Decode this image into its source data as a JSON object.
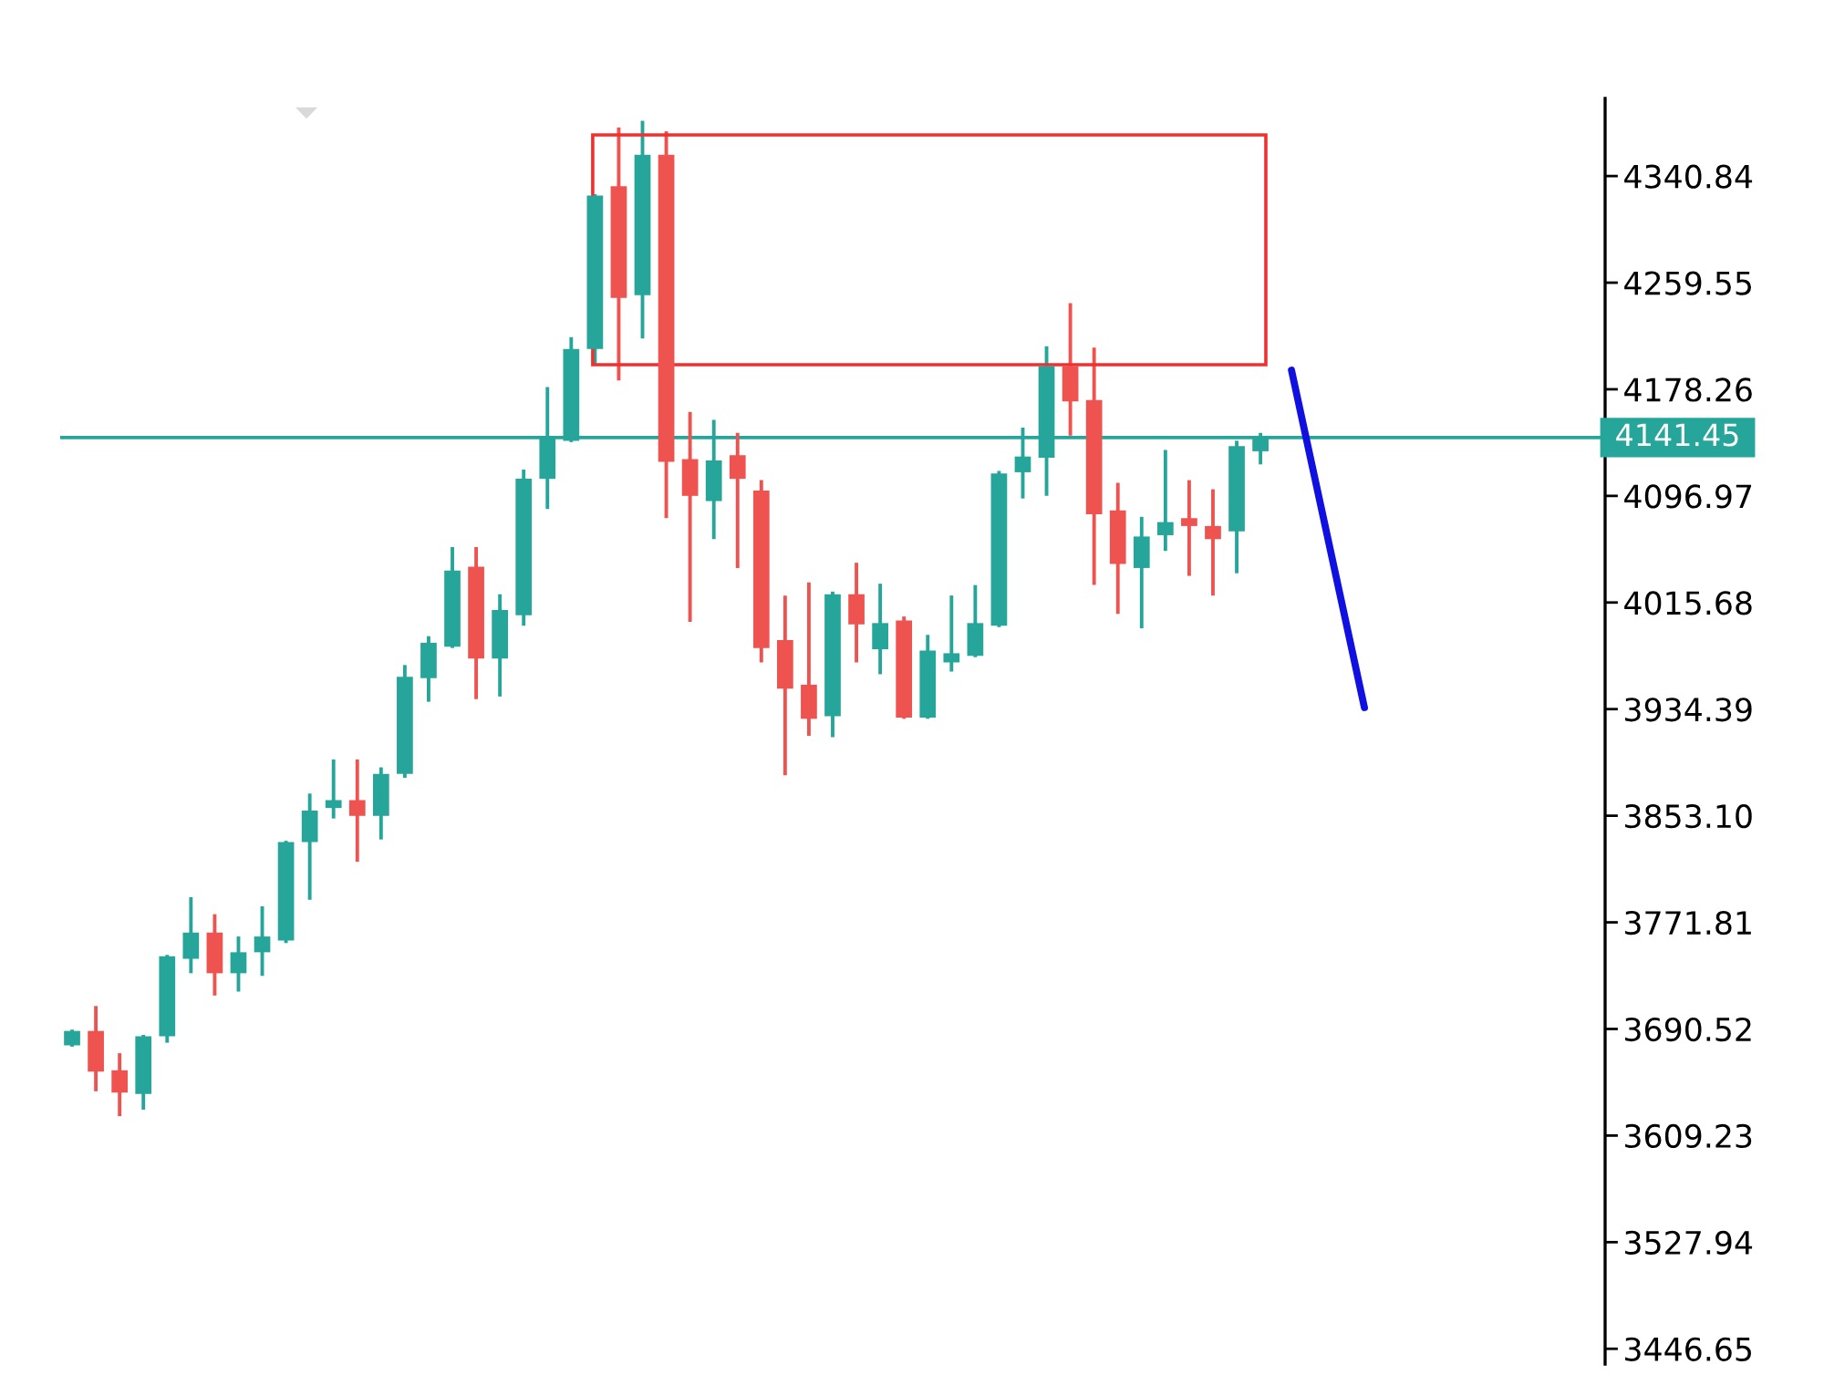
{
  "chart_data": {
    "type": "candlestick",
    "categories": [
      null,
      null,
      null,
      null,
      null,
      null,
      null,
      null,
      null,
      null,
      null,
      null,
      null,
      null,
      null,
      null,
      null,
      null,
      null,
      null,
      null,
      null,
      null,
      null,
      null,
      null,
      null,
      null,
      null,
      null,
      null,
      null,
      null,
      null,
      null,
      null,
      null,
      null,
      null,
      null,
      null,
      null,
      null,
      null,
      null,
      null,
      null,
      null,
      null,
      null,
      null,
      null,
      null,
      null,
      null,
      null,
      null,
      null,
      null,
      null,
      null,
      null,
      null,
      null,
      null
    ],
    "ohlc": [
      [
        3678,
        3690,
        3677,
        3689
      ],
      [
        3689,
        3708,
        3643,
        3658
      ],
      [
        3659,
        3672,
        3624,
        3642
      ],
      [
        3641,
        3686,
        3629,
        3685
      ],
      [
        3685,
        3747,
        3680,
        3746
      ],
      [
        3744,
        3791,
        3733,
        3764
      ],
      [
        3764,
        3778,
        3716,
        3733
      ],
      [
        3733,
        3761,
        3719,
        3749
      ],
      [
        3749,
        3784,
        3731,
        3761
      ],
      [
        3758,
        3834,
        3756,
        3833
      ],
      [
        3833,
        3870,
        3789,
        3857
      ],
      [
        3859,
        3896,
        3851,
        3865
      ],
      [
        3865,
        3896,
        3818,
        3853
      ],
      [
        3853,
        3890,
        3835,
        3885
      ],
      [
        3885,
        3968,
        3882,
        3959
      ],
      [
        3958,
        3990,
        3940,
        3985
      ],
      [
        3982,
        4058,
        3981,
        4040
      ],
      [
        4043,
        4058,
        3942,
        3973
      ],
      [
        3973,
        4022,
        3944,
        4010
      ],
      [
        4006,
        4117,
        3998,
        4110
      ],
      [
        4110,
        4180,
        4087,
        4141
      ],
      [
        4139,
        4218,
        4138,
        4209
      ],
      [
        4209,
        4327,
        4197,
        4326
      ],
      [
        4333,
        4378,
        4185,
        4248
      ],
      [
        4250,
        4383,
        4217,
        4357
      ],
      [
        4357,
        4375,
        4080,
        4123
      ],
      [
        4125,
        4161,
        4001,
        4097
      ],
      [
        4093,
        4155,
        4064,
        4124
      ],
      [
        4128,
        4145,
        4042,
        4110
      ],
      [
        4101,
        4109,
        3970,
        3981
      ],
      [
        3987,
        4021,
        3884,
        3950
      ],
      [
        3953,
        4031,
        3914,
        3927
      ],
      [
        3929,
        4024,
        3913,
        4022
      ],
      [
        4022,
        4046,
        3970,
        3999
      ],
      [
        3980,
        4030,
        3961,
        4000
      ],
      [
        4002,
        4005,
        3927,
        3928
      ],
      [
        3928,
        3991,
        3927,
        3979
      ],
      [
        3970,
        4021,
        3963,
        3977
      ],
      [
        3975,
        4029,
        3974,
        4000
      ],
      [
        3998,
        4116,
        3997,
        4114
      ],
      [
        4115,
        4149,
        4095,
        4127
      ],
      [
        4126,
        4211,
        4097,
        4196
      ],
      [
        4196,
        4244,
        4143,
        4169
      ],
      [
        4170,
        4210,
        4029,
        4083
      ],
      [
        4086,
        4107,
        4007,
        4045
      ],
      [
        4042,
        4081,
        3996,
        4066
      ],
      [
        4067,
        4132,
        4055,
        4077
      ],
      [
        4080,
        4109,
        4036,
        4074
      ],
      [
        4074,
        4102,
        4021,
        4064
      ],
      [
        4070,
        4139,
        4038,
        4135
      ],
      [
        4131,
        4145,
        4121,
        4141
      ],
      null,
      null,
      null,
      null,
      null,
      null,
      null,
      null,
      null,
      null,
      null,
      null,
      null,
      null
    ],
    "colors": [
      "#26a69a",
      "#ef5350",
      "#ef5350",
      "#26a69a",
      "#26a69a",
      "#26a69a",
      "#ef5350",
      "#26a69a",
      "#26a69a",
      "#26a69a",
      "#26a69a",
      "#26a69a",
      "#ef5350",
      "#26a69a",
      "#26a69a",
      "#26a69a",
      "#26a69a",
      "#ef5350",
      "#26a69a",
      "#26a69a",
      "#26a69a",
      "#26a69a",
      "#26a69a",
      "#ef5350",
      "#26a69a",
      "#ef5350",
      "#ef5350",
      "#26a69a",
      "#ef5350",
      "#ef5350",
      "#ef5350",
      "#ef5350",
      "#26a69a",
      "#ef5350",
      "#26a69a",
      "#ef5350",
      "#26a69a",
      "#26a69a",
      "#26a69a",
      "#26a69a",
      "#26a69a",
      "#26a69a",
      "#ef5350",
      "#ef5350",
      "#ef5350",
      "#26a69a",
      "#26a69a",
      "#ef5350",
      "#ef5350",
      "#26a69a",
      "#26a69a",
      null,
      null,
      null,
      null,
      null,
      null,
      null,
      null,
      null,
      null,
      null,
      null,
      null,
      null
    ],
    "ylim": [
      3435,
      4400
    ],
    "yticks": [
      4340.84,
      4259.55,
      4178.26,
      4096.97,
      4015.68,
      3934.39,
      {
        "value": 3853.1,
        "label": "3853.10"
      },
      3771.81,
      3690.52,
      3609.23,
      3527.94,
      3446.65
    ],
    "ref_lines": [
      {
        "axis": "y",
        "value": 4141.45,
        "label": "4141.45",
        "color": "#26a69a"
      }
    ],
    "tick_labels": "y"
  }
}
